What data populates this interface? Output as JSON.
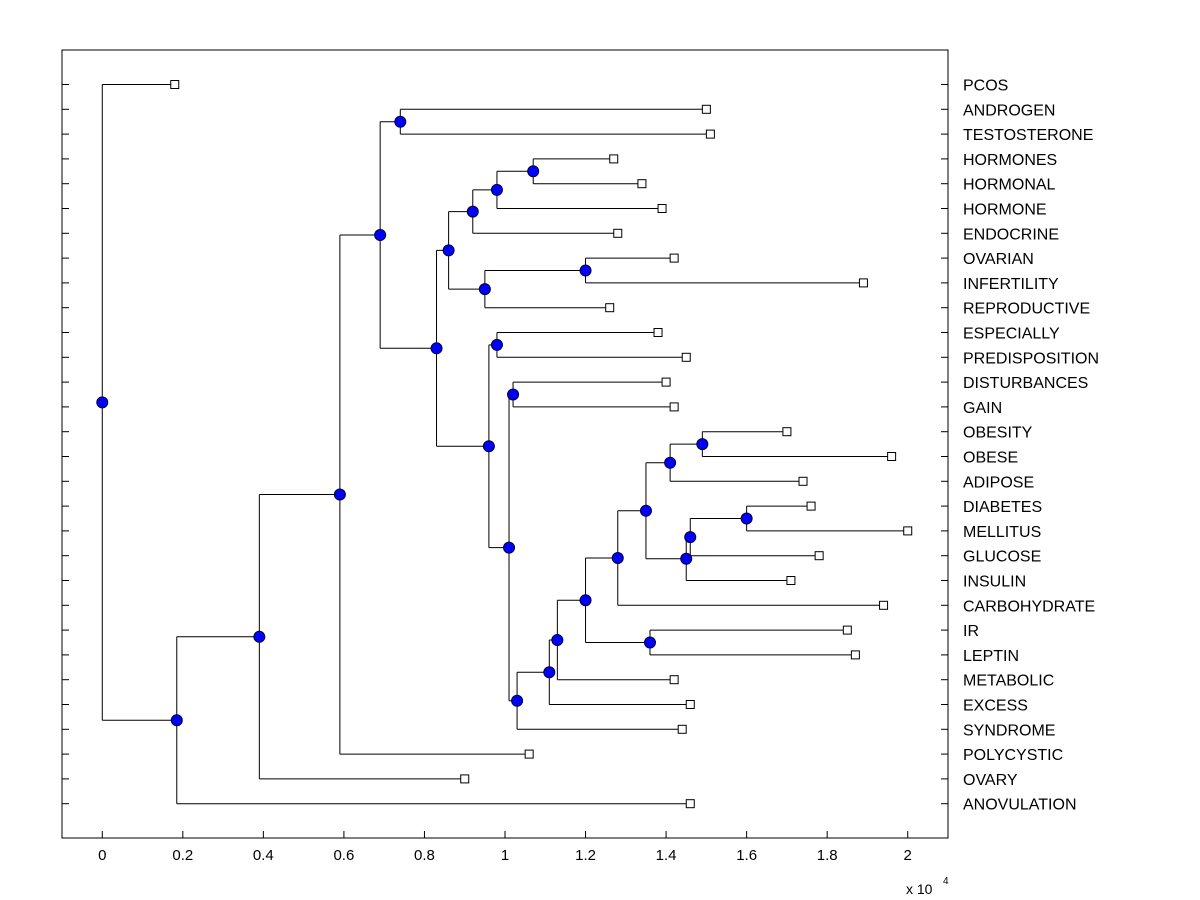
{
  "chart_data": {
    "type": "dendrogram",
    "title": "",
    "xlabel": "",
    "ylabel": "",
    "x_multiplier_base": "x 10",
    "x_multiplier_exponent": "4",
    "xlim": [
      -0.1,
      2.1
    ],
    "x_ticks": [
      0,
      0.2,
      0.4,
      0.6,
      0.8,
      1,
      1.2,
      1.4,
      1.6,
      1.8,
      2
    ],
    "x_tick_labels": [
      "0",
      "0.2",
      "0.4",
      "0.6",
      "0.8",
      "1",
      "1.2",
      "1.4",
      "1.6",
      "1.8",
      "2"
    ],
    "colors": {
      "axis": "#000000",
      "branch": "#000000",
      "node_fill": "#0000ff",
      "node_stroke": "#000033",
      "leaf_fill": "#ffffff"
    },
    "leaves": [
      {
        "label": "PCOS",
        "x": 0.18
      },
      {
        "label": "ANDROGEN",
        "x": 1.5
      },
      {
        "label": "TESTOSTERONE",
        "x": 1.51
      },
      {
        "label": "HORMONES",
        "x": 1.27
      },
      {
        "label": "HORMONAL",
        "x": 1.34
      },
      {
        "label": "HORMONE",
        "x": 1.39
      },
      {
        "label": "ENDOCRINE",
        "x": 1.28
      },
      {
        "label": "OVARIAN",
        "x": 1.42
      },
      {
        "label": "INFERTILITY",
        "x": 1.89
      },
      {
        "label": "REPRODUCTIVE",
        "x": 1.26
      },
      {
        "label": "ESPECIALLY",
        "x": 1.38
      },
      {
        "label": "PREDISPOSITION",
        "x": 1.45
      },
      {
        "label": "DISTURBANCES",
        "x": 1.4
      },
      {
        "label": "GAIN",
        "x": 1.42
      },
      {
        "label": "OBESITY",
        "x": 1.7
      },
      {
        "label": "OBESE",
        "x": 1.96
      },
      {
        "label": "ADIPOSE",
        "x": 1.74
      },
      {
        "label": "DIABETES",
        "x": 1.76
      },
      {
        "label": "MELLITUS",
        "x": 2.0
      },
      {
        "label": "GLUCOSE",
        "x": 1.78
      },
      {
        "label": "INSULIN",
        "x": 1.71
      },
      {
        "label": "CARBOHYDRATE",
        "x": 1.94
      },
      {
        "label": "IR",
        "x": 1.85
      },
      {
        "label": "LEPTIN",
        "x": 1.87
      },
      {
        "label": "METABOLIC",
        "x": 1.42
      },
      {
        "label": "EXCESS",
        "x": 1.46
      },
      {
        "label": "SYNDROME",
        "x": 1.44
      },
      {
        "label": "POLYCYSTIC",
        "x": 1.06
      },
      {
        "label": "OVARY",
        "x": 0.9
      },
      {
        "label": "ANOVULATION",
        "x": 1.46
      }
    ],
    "internal_nodes": [
      {
        "id": "n_obesity_obese",
        "x": 1.49,
        "children": [
          "L:14",
          "L:15"
        ]
      },
      {
        "id": "n_adipose",
        "x": 1.41,
        "children": [
          "N:n_obesity_obese",
          "L:16"
        ]
      },
      {
        "id": "n_diabetes_mellitus",
        "x": 1.6,
        "children": [
          "L:17",
          "L:18"
        ]
      },
      {
        "id": "n_dm_glucose",
        "x": 1.46,
        "children": [
          "N:n_diabetes_mellitus",
          "L:19"
        ]
      },
      {
        "id": "n_insulin",
        "x": 1.45,
        "children": [
          "N:n_dm_glucose",
          "L:20"
        ]
      },
      {
        "id": "n_obese_insulin",
        "x": 1.35,
        "children": [
          "N:n_adipose",
          "N:n_insulin"
        ]
      },
      {
        "id": "n_carbohydrate",
        "x": 1.28,
        "children": [
          "N:n_obese_insulin",
          "L:21"
        ]
      },
      {
        "id": "n_ir_leptin",
        "x": 1.36,
        "children": [
          "L:22",
          "L:23"
        ]
      },
      {
        "id": "n_carb_ir",
        "x": 1.2,
        "children": [
          "N:n_carbohydrate",
          "N:n_ir_leptin"
        ]
      },
      {
        "id": "n_metabolic",
        "x": 1.13,
        "children": [
          "N:n_carb_ir",
          "L:24"
        ]
      },
      {
        "id": "n_excess",
        "x": 1.11,
        "children": [
          "N:n_metabolic",
          "L:25"
        ]
      },
      {
        "id": "n_syndrome",
        "x": 1.03,
        "children": [
          "N:n_excess",
          "L:26"
        ]
      },
      {
        "id": "n_disturb_gain",
        "x": 1.02,
        "children": [
          "L:12",
          "L:13"
        ]
      },
      {
        "id": "n_gain_syndrome",
        "x": 1.01,
        "children": [
          "N:n_disturb_gain",
          "N:n_syndrome"
        ]
      },
      {
        "id": "n_especially",
        "x": 0.98,
        "children": [
          "L:10",
          "L:11"
        ]
      },
      {
        "id": "n_esp_gain",
        "x": 0.96,
        "children": [
          "N:n_especially",
          "N:n_gain_syndrome"
        ]
      },
      {
        "id": "n_hormones_hormonal",
        "x": 1.07,
        "children": [
          "L:3",
          "L:4"
        ]
      },
      {
        "id": "n_hormone",
        "x": 0.98,
        "children": [
          "N:n_hormones_hormonal",
          "L:5"
        ]
      },
      {
        "id": "n_endocrine",
        "x": 0.92,
        "children": [
          "N:n_hormone",
          "L:6"
        ]
      },
      {
        "id": "n_ovarian_infertility",
        "x": 1.2,
        "children": [
          "L:7",
          "L:8"
        ]
      },
      {
        "id": "n_reproductive",
        "x": 0.95,
        "children": [
          "N:n_ovarian_infertility",
          "L:9"
        ]
      },
      {
        "id": "n_endocrine_reprod",
        "x": 0.86,
        "children": [
          "N:n_endocrine",
          "N:n_reproductive"
        ]
      },
      {
        "id": "n_hormone_block",
        "x": 0.83,
        "children": [
          "N:n_endocrine_reprod",
          "N:n_esp_gain"
        ]
      },
      {
        "id": "n_androgen_testo",
        "x": 0.74,
        "children": [
          "L:1",
          "L:2"
        ]
      },
      {
        "id": "n_top",
        "x": 0.69,
        "children": [
          "N:n_androgen_testo",
          "N:n_hormone_block"
        ]
      },
      {
        "id": "n_polycystic",
        "x": 0.59,
        "children": [
          "N:n_top",
          "L:27"
        ]
      },
      {
        "id": "n_ovary",
        "x": 0.39,
        "children": [
          "N:n_polycystic",
          "L:28"
        ]
      },
      {
        "id": "n_anovulation",
        "x": 0.185,
        "children": [
          "N:n_ovary",
          "L:29"
        ]
      },
      {
        "id": "n_root",
        "x": 0.0,
        "children": [
          "L:0",
          "N:n_anovulation"
        ]
      }
    ]
  }
}
